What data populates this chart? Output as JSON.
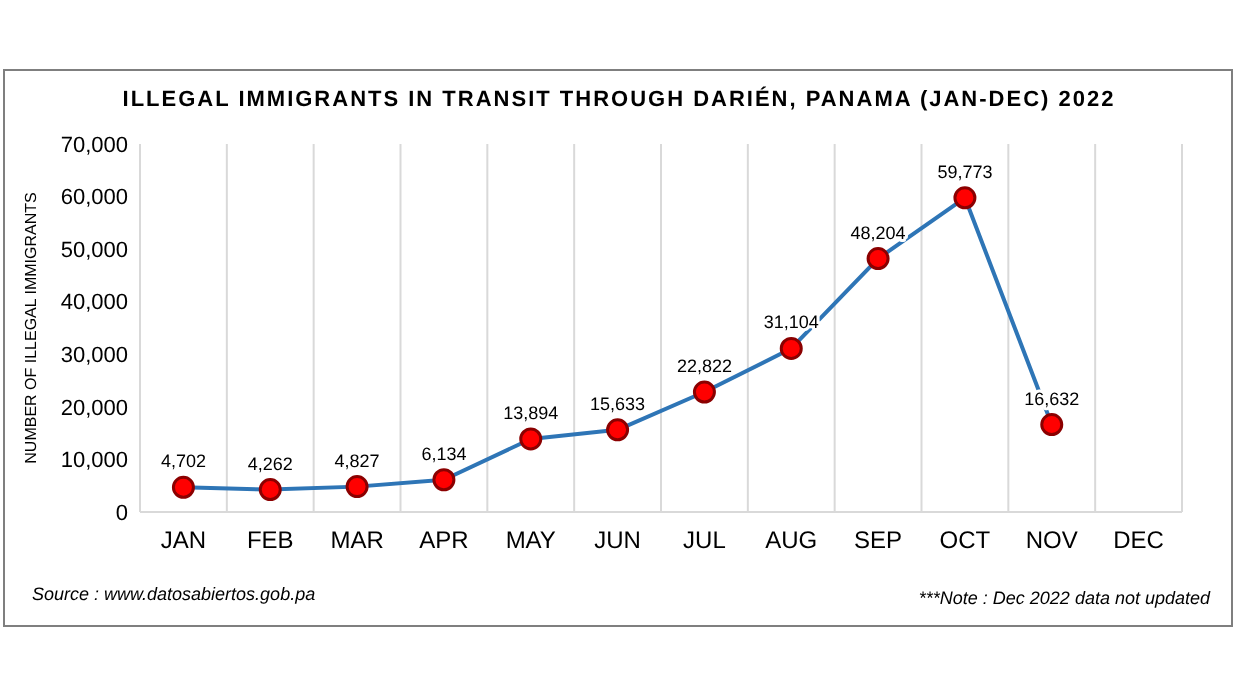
{
  "chart_data": {
    "type": "line",
    "title": "ILLEGAL IMMIGRANTS IN TRANSIT THROUGH DARIÉN, PANAMA (JAN-DEC) 2022",
    "ylabel": "NUMBER OF ILLEGAL IMMIGRANTS",
    "categories": [
      "JAN",
      "FEB",
      "MAR",
      "APR",
      "MAY",
      "JUN",
      "JUL",
      "AUG",
      "SEP",
      "OCT",
      "NOV",
      "DEC"
    ],
    "series": [
      {
        "color": "#2e75b6",
        "values": [
          4702,
          4262,
          4827,
          6134,
          13894,
          15633,
          22822,
          31104,
          48204,
          59773,
          16632,
          null
        ],
        "value_labels": [
          "4,702",
          "4,262",
          "4,827",
          "6,134",
          "13,894",
          "15,633",
          "22,822",
          "31,104",
          "48,204",
          "59,773",
          "16,632",
          null
        ]
      }
    ],
    "ylim": [
      0,
      70000
    ],
    "yticks": [
      {
        "value": 0,
        "label": "0"
      },
      {
        "value": 10000,
        "label": "10,000"
      },
      {
        "value": 20000,
        "label": "20,000"
      },
      {
        "value": 30000,
        "label": "30,000"
      },
      {
        "value": 40000,
        "label": "40,000"
      },
      {
        "value": 50000,
        "label": "50,000"
      },
      {
        "value": 60000,
        "label": "60,000"
      },
      {
        "value": 70000,
        "label": "70,000"
      }
    ],
    "grid": "x",
    "marker": "circle",
    "line_style": "solid",
    "annotations": [
      "Source : www.datosabiertos.gob.pa",
      "***Note : Dec 2022 data not updated"
    ]
  }
}
